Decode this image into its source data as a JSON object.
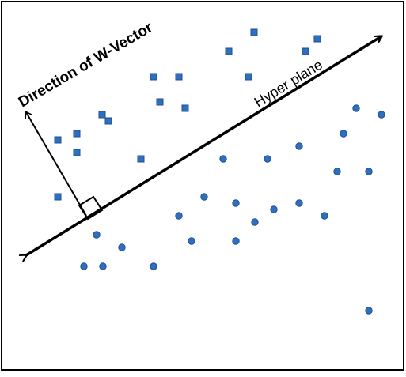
{
  "labels": {
    "w_vector": "Direction of W-Vector",
    "hyperplane": "Hyper plane"
  },
  "colors": {
    "marker_fill": "#2f6fc0",
    "marker_stroke": "#1d4f93",
    "line": "#000000",
    "frame": "#000000",
    "background": "#ffffff"
  },
  "classes": [
    {
      "name": "square-class",
      "marker": "square"
    },
    {
      "name": "circle-class",
      "marker": "circle"
    }
  ]
}
